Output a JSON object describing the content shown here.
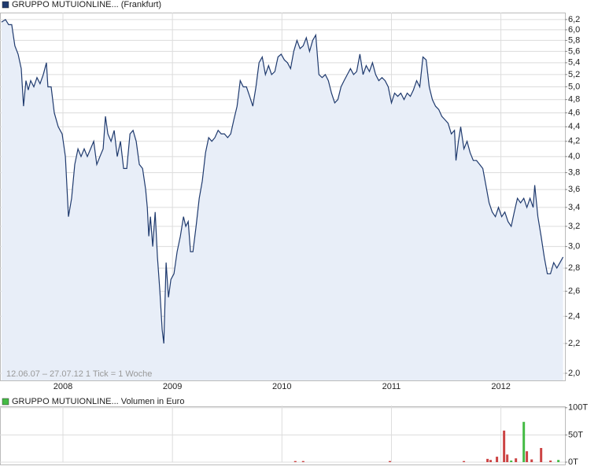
{
  "chart_data": [
    {
      "type": "line",
      "title": "GRUPPO MUTUIONLINE... (Frankfurt)",
      "legend_color": "#1f3a6e",
      "annotation": "12.06.07 – 27.07.12   1 Tick = 1 Woche",
      "color": "#1f3a6e",
      "fill_color": "#e8eef8",
      "log_scale": true,
      "grid": true,
      "xlim": [
        2007.425,
        2012.585
      ],
      "xticks": [
        2008,
        2009,
        2010,
        2011,
        2012
      ],
      "ylim": [
        1.955,
        6.34
      ],
      "yticks": [
        {
          "value": 2.0,
          "label": "2,0"
        },
        {
          "value": 2.2,
          "label": "2,2"
        },
        {
          "value": 2.4,
          "label": "2,4"
        },
        {
          "value": 2.6,
          "label": "2,6"
        },
        {
          "value": 2.8,
          "label": "2,8"
        },
        {
          "value": 3.0,
          "label": "3,0"
        },
        {
          "value": 3.2,
          "label": "3,2"
        },
        {
          "value": 3.4,
          "label": "3,4"
        },
        {
          "value": 3.6,
          "label": "3,6"
        },
        {
          "value": 3.8,
          "label": "3,8"
        },
        {
          "value": 4.0,
          "label": "4,0"
        },
        {
          "value": 4.2,
          "label": "4,2"
        },
        {
          "value": 4.4,
          "label": "4,4"
        },
        {
          "value": 4.6,
          "label": "4,6"
        },
        {
          "value": 4.8,
          "label": "4,8"
        },
        {
          "value": 5.0,
          "label": "5,0"
        },
        {
          "value": 5.2,
          "label": "5,2"
        },
        {
          "value": 5.4,
          "label": "5,4"
        },
        {
          "value": 5.6,
          "label": "5,6"
        },
        {
          "value": 5.8,
          "label": "5,8"
        },
        {
          "value": 6.0,
          "label": "6,0"
        },
        {
          "value": 6.2,
          "label": "6,2"
        }
      ],
      "x": [
        2007.439,
        2007.475,
        2007.504,
        2007.532,
        2007.561,
        2007.59,
        2007.619,
        2007.64,
        2007.662,
        2007.683,
        2007.705,
        2007.734,
        2007.763,
        2007.791,
        2007.82,
        2007.849,
        2007.863,
        2007.892,
        2007.921,
        2007.957,
        2007.993,
        2008.022,
        2008.05,
        2008.079,
        2008.108,
        2008.137,
        2008.165,
        2008.194,
        2008.223,
        2008.252,
        2008.281,
        2008.309,
        2008.338,
        2008.367,
        2008.388,
        2008.41,
        2008.439,
        2008.468,
        2008.496,
        2008.525,
        2008.554,
        2008.583,
        2008.612,
        2008.64,
        2008.669,
        2008.698,
        2008.727,
        2008.755,
        2008.77,
        2008.784,
        2008.799,
        2008.82,
        2008.842,
        2008.863,
        2008.885,
        2008.906,
        2008.921,
        2008.942,
        2008.964,
        2008.986,
        2009.014,
        2009.043,
        2009.072,
        2009.101,
        2009.122,
        2009.144,
        2009.165,
        2009.187,
        2009.216,
        2009.245,
        2009.273,
        2009.302,
        2009.331,
        2009.36,
        2009.388,
        2009.417,
        2009.446,
        2009.475,
        2009.504,
        2009.532,
        2009.561,
        2009.59,
        2009.619,
        2009.647,
        2009.676,
        2009.705,
        2009.734,
        2009.763,
        2009.791,
        2009.82,
        2009.849,
        2009.878,
        2009.906,
        2009.935,
        2009.964,
        2009.993,
        2010.022,
        2010.05,
        2010.079,
        2010.108,
        2010.137,
        2010.165,
        2010.194,
        2010.223,
        2010.252,
        2010.281,
        2010.309,
        2010.338,
        2010.367,
        2010.396,
        2010.424,
        2010.453,
        2010.482,
        2010.511,
        2010.54,
        2010.568,
        2010.597,
        2010.626,
        2010.655,
        2010.683,
        2010.712,
        2010.741,
        2010.77,
        2010.799,
        2010.827,
        2010.856,
        2010.885,
        2010.914,
        2010.942,
        2010.971,
        2011.0,
        2011.029,
        2011.058,
        2011.086,
        2011.115,
        2011.144,
        2011.173,
        2011.201,
        2011.23,
        2011.259,
        2011.288,
        2011.317,
        2011.345,
        2011.374,
        2011.403,
        2011.432,
        2011.46,
        2011.489,
        2011.518,
        2011.547,
        2011.576,
        2011.59,
        2011.612,
        2011.633,
        2011.662,
        2011.691,
        2011.719,
        2011.748,
        2011.777,
        2011.806,
        2011.835,
        2011.863,
        2011.892,
        2011.921,
        2011.95,
        2011.978,
        2012.007,
        2012.036,
        2012.065,
        2012.094,
        2012.122,
        2012.151,
        2012.18,
        2012.209,
        2012.237,
        2012.266,
        2012.295,
        2012.309,
        2012.338,
        2012.367,
        2012.396,
        2012.424,
        2012.453,
        2012.482,
        2012.511,
        2012.54,
        2012.568
      ],
      "values": [
        6.15,
        6.2,
        6.1,
        6.1,
        5.7,
        5.55,
        5.3,
        4.7,
        5.1,
        4.95,
        5.1,
        5.0,
        5.15,
        5.05,
        5.2,
        5.4,
        5.0,
        5.0,
        4.6,
        4.4,
        4.3,
        4.0,
        3.3,
        3.5,
        3.9,
        4.1,
        4.0,
        4.1,
        4.0,
        4.1,
        4.2,
        3.9,
        4.0,
        4.1,
        4.55,
        4.3,
        4.2,
        4.35,
        4.0,
        4.2,
        3.85,
        3.85,
        4.3,
        4.35,
        4.2,
        3.9,
        3.85,
        3.6,
        3.4,
        3.1,
        3.3,
        3.0,
        3.35,
        2.9,
        2.6,
        2.3,
        2.2,
        2.85,
        2.55,
        2.7,
        2.75,
        2.95,
        3.1,
        3.3,
        3.2,
        3.25,
        2.95,
        2.95,
        3.2,
        3.5,
        3.7,
        4.05,
        4.25,
        4.2,
        4.25,
        4.35,
        4.3,
        4.3,
        4.25,
        4.3,
        4.5,
        4.7,
        5.1,
        5.0,
        5.0,
        4.85,
        4.7,
        5.0,
        5.4,
        5.5,
        5.2,
        5.35,
        5.2,
        5.25,
        5.5,
        5.55,
        5.45,
        5.4,
        5.3,
        5.6,
        5.8,
        5.65,
        5.7,
        5.85,
        5.6,
        5.8,
        5.9,
        5.2,
        5.15,
        5.2,
        5.1,
        4.9,
        4.75,
        4.8,
        5.0,
        5.1,
        5.2,
        5.3,
        5.2,
        5.25,
        5.55,
        5.2,
        5.35,
        5.25,
        5.4,
        5.2,
        5.1,
        5.15,
        5.1,
        5.0,
        4.75,
        4.9,
        4.85,
        4.9,
        4.8,
        4.9,
        4.85,
        4.95,
        5.1,
        5.0,
        5.5,
        5.45,
        5.0,
        4.8,
        4.7,
        4.65,
        4.55,
        4.5,
        4.45,
        4.3,
        4.35,
        3.95,
        4.2,
        4.4,
        4.1,
        4.2,
        4.05,
        3.95,
        3.95,
        3.9,
        3.85,
        3.65,
        3.45,
        3.35,
        3.3,
        3.4,
        3.3,
        3.35,
        3.25,
        3.2,
        3.35,
        3.5,
        3.45,
        3.5,
        3.4,
        3.5,
        3.4,
        3.65,
        3.3,
        3.1,
        2.9,
        2.75,
        2.75,
        2.85,
        2.8,
        2.85,
        2.9
      ]
    },
    {
      "type": "bar",
      "title": "GRUPPO MUTUIONLINE... Volumen in Euro",
      "legend_color": "#44bb44",
      "grid": true,
      "xlim": [
        2007.425,
        2012.585
      ],
      "xticks": [
        2008,
        2009,
        2010,
        2011,
        2012
      ],
      "ylim": [
        0,
        104000
      ],
      "yticks": [
        {
          "value": 0,
          "label": "0T"
        },
        {
          "value": 50000,
          "label": "50T"
        },
        {
          "value": 100000,
          "label": "100T"
        }
      ],
      "x": [
        2010.122,
        2010.194,
        2010.986,
        2011.662,
        2011.878,
        2011.906,
        2011.964,
        2012.029,
        2012.058,
        2012.094,
        2012.137,
        2012.209,
        2012.237,
        2012.281,
        2012.367,
        2012.453,
        2012.525
      ],
      "values": [
        2000,
        2000,
        2000,
        2000,
        6000,
        4000,
        10000,
        58000,
        14000,
        3000,
        7000,
        74000,
        20000,
        5000,
        26000,
        3000,
        4000
      ],
      "colors": [
        "#cc4444",
        "#cc4444",
        "#cc4444",
        "#cc4444",
        "#cc4444",
        "#cc4444",
        "#cc4444",
        "#cc4444",
        "#cc4444",
        "#44bb44",
        "#cc4444",
        "#44bb44",
        "#cc4444",
        "#cc4444",
        "#cc4444",
        "#cc4444",
        "#44bb44"
      ]
    }
  ]
}
